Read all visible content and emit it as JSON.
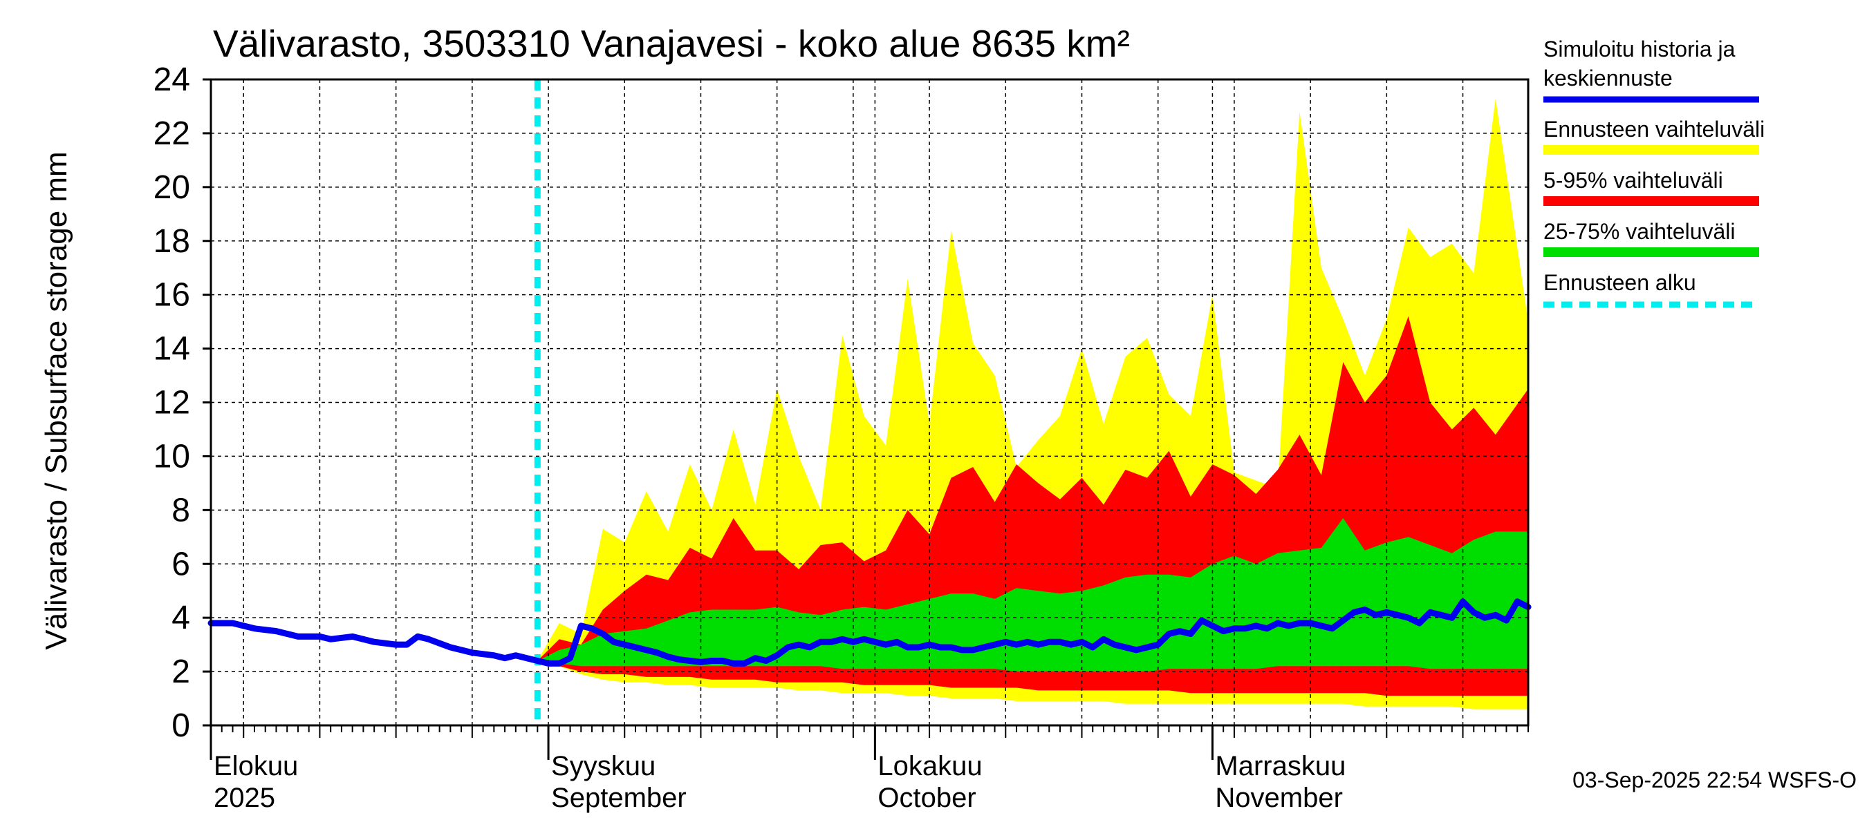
{
  "chart_data": {
    "type": "area",
    "title": "Välivarasto, 3503310 Vanajavesi - koko alue 8635 km²",
    "ylabel": "Välivarasto / Subsurface storage  mm",
    "ylim": [
      0,
      24
    ],
    "yticks": [
      "0",
      "2",
      "4",
      "6",
      "8",
      "10",
      "12",
      "14",
      "16",
      "18",
      "20",
      "22",
      "24"
    ],
    "x_range": [
      "2025-08-01",
      "2025-11-30"
    ],
    "grid": true,
    "forecast_start": "2025-08-31",
    "months": [
      {
        "fi": "Elokuu",
        "en": "2025",
        "date": "2025-08-01"
      },
      {
        "fi": "Syyskuu",
        "en": "September",
        "date": "2025-09-01"
      },
      {
        "fi": "Lokakuu",
        "en": "October",
        "date": "2025-10-01"
      },
      {
        "fi": "Marraskuu",
        "en": "November",
        "date": "2025-11-01"
      }
    ],
    "legend": {
      "placement": "right",
      "items": [
        {
          "label": "Simuloitu historia ja keskiennuste",
          "color": "#0000ee",
          "style": "line"
        },
        {
          "label": "Ennusteen vaihteluväli",
          "color": "#ffff00",
          "style": "band"
        },
        {
          "label": "5-95% vaihteluväli",
          "color": "#ff0000",
          "style": "band"
        },
        {
          "label": "25-75% vaihteluväli",
          "color": "#00dd00",
          "style": "band"
        },
        {
          "label": "Ennusteen alku",
          "color": "#00eeee",
          "style": "dashed"
        }
      ]
    },
    "series": [
      {
        "name": "Simuloitu historia ja keskiennuste",
        "points": [
          [
            "2025-08-01",
            3.8
          ],
          [
            "2025-08-03",
            3.8
          ],
          [
            "2025-08-05",
            3.6
          ],
          [
            "2025-08-07",
            3.5
          ],
          [
            "2025-08-09",
            3.3
          ],
          [
            "2025-08-11",
            3.3
          ],
          [
            "2025-08-12",
            3.2
          ],
          [
            "2025-08-14",
            3.3
          ],
          [
            "2025-08-16",
            3.1
          ],
          [
            "2025-08-18",
            3.0
          ],
          [
            "2025-08-19",
            3.0
          ],
          [
            "2025-08-20",
            3.3
          ],
          [
            "2025-08-21",
            3.2
          ],
          [
            "2025-08-23",
            2.9
          ],
          [
            "2025-08-25",
            2.7
          ],
          [
            "2025-08-27",
            2.6
          ],
          [
            "2025-08-28",
            2.5
          ],
          [
            "2025-08-29",
            2.6
          ],
          [
            "2025-08-31",
            2.4
          ],
          [
            "2025-09-01",
            2.3
          ],
          [
            "2025-09-02",
            2.3
          ],
          [
            "2025-09-03",
            2.5
          ],
          [
            "2025-09-04",
            3.7
          ],
          [
            "2025-09-05",
            3.6
          ],
          [
            "2025-09-06",
            3.4
          ],
          [
            "2025-09-07",
            3.1
          ],
          [
            "2025-09-08",
            3.0
          ],
          [
            "2025-09-09",
            2.9
          ],
          [
            "2025-09-10",
            2.8
          ],
          [
            "2025-09-11",
            2.7
          ],
          [
            "2025-09-12",
            2.55
          ],
          [
            "2025-09-13",
            2.45
          ],
          [
            "2025-09-14",
            2.4
          ],
          [
            "2025-09-15",
            2.35
          ],
          [
            "2025-09-16",
            2.4
          ],
          [
            "2025-09-17",
            2.4
          ],
          [
            "2025-09-18",
            2.3
          ],
          [
            "2025-09-19",
            2.3
          ],
          [
            "2025-09-20",
            2.5
          ],
          [
            "2025-09-21",
            2.4
          ],
          [
            "2025-09-22",
            2.6
          ],
          [
            "2025-09-23",
            2.9
          ],
          [
            "2025-09-24",
            3.0
          ],
          [
            "2025-09-25",
            2.9
          ],
          [
            "2025-09-26",
            3.1
          ],
          [
            "2025-09-27",
            3.1
          ],
          [
            "2025-09-28",
            3.2
          ],
          [
            "2025-09-29",
            3.1
          ],
          [
            "2025-09-30",
            3.2
          ],
          [
            "2025-10-01",
            3.1
          ],
          [
            "2025-10-02",
            3.0
          ],
          [
            "2025-10-03",
            3.1
          ],
          [
            "2025-10-04",
            2.9
          ],
          [
            "2025-10-05",
            2.9
          ],
          [
            "2025-10-06",
            3.0
          ],
          [
            "2025-10-07",
            2.9
          ],
          [
            "2025-10-08",
            2.9
          ],
          [
            "2025-10-09",
            2.8
          ],
          [
            "2025-10-10",
            2.8
          ],
          [
            "2025-10-11",
            2.9
          ],
          [
            "2025-10-12",
            3.0
          ],
          [
            "2025-10-13",
            3.1
          ],
          [
            "2025-10-14",
            3.0
          ],
          [
            "2025-10-15",
            3.1
          ],
          [
            "2025-10-16",
            3.0
          ],
          [
            "2025-10-17",
            3.1
          ],
          [
            "2025-10-18",
            3.1
          ],
          [
            "2025-10-19",
            3.0
          ],
          [
            "2025-10-20",
            3.1
          ],
          [
            "2025-10-21",
            2.9
          ],
          [
            "2025-10-22",
            3.2
          ],
          [
            "2025-10-23",
            3.0
          ],
          [
            "2025-10-24",
            2.9
          ],
          [
            "2025-10-25",
            2.8
          ],
          [
            "2025-10-26",
            2.9
          ],
          [
            "2025-10-27",
            3.0
          ],
          [
            "2025-10-28",
            3.4
          ],
          [
            "2025-10-29",
            3.5
          ],
          [
            "2025-10-30",
            3.4
          ],
          [
            "2025-10-31",
            3.9
          ],
          [
            "2025-11-01",
            3.7
          ],
          [
            "2025-11-02",
            3.5
          ],
          [
            "2025-11-03",
            3.6
          ],
          [
            "2025-11-04",
            3.6
          ],
          [
            "2025-11-05",
            3.7
          ],
          [
            "2025-11-06",
            3.6
          ],
          [
            "2025-11-07",
            3.8
          ],
          [
            "2025-11-08",
            3.7
          ],
          [
            "2025-11-09",
            3.8
          ],
          [
            "2025-11-10",
            3.8
          ],
          [
            "2025-11-11",
            3.7
          ],
          [
            "2025-11-12",
            3.6
          ],
          [
            "2025-11-13",
            3.9
          ],
          [
            "2025-11-14",
            4.2
          ],
          [
            "2025-11-15",
            4.3
          ],
          [
            "2025-11-16",
            4.1
          ],
          [
            "2025-11-17",
            4.2
          ],
          [
            "2025-11-18",
            4.1
          ],
          [
            "2025-11-19",
            4.0
          ],
          [
            "2025-11-20",
            3.8
          ],
          [
            "2025-11-21",
            4.2
          ],
          [
            "2025-11-22",
            4.1
          ],
          [
            "2025-11-23",
            4.0
          ],
          [
            "2025-11-24",
            4.6
          ],
          [
            "2025-11-25",
            4.2
          ],
          [
            "2025-11-26",
            4.0
          ],
          [
            "2025-11-27",
            4.1
          ],
          [
            "2025-11-28",
            3.9
          ],
          [
            "2025-11-29",
            4.6
          ],
          [
            "2025-11-30",
            4.4
          ]
        ]
      }
    ],
    "bands": [
      {
        "name": "Ennusteen vaihteluväli",
        "dates": [
          "2025-08-31",
          "2025-09-02",
          "2025-09-04",
          "2025-09-06",
          "2025-09-08",
          "2025-09-10",
          "2025-09-12",
          "2025-09-14",
          "2025-09-16",
          "2025-09-18",
          "2025-09-20",
          "2025-09-22",
          "2025-09-24",
          "2025-09-26",
          "2025-09-28",
          "2025-09-30",
          "2025-10-02",
          "2025-10-04",
          "2025-10-06",
          "2025-10-08",
          "2025-10-10",
          "2025-10-12",
          "2025-10-14",
          "2025-10-16",
          "2025-10-18",
          "2025-10-20",
          "2025-10-22",
          "2025-10-24",
          "2025-10-26",
          "2025-10-28",
          "2025-10-30",
          "2025-11-01",
          "2025-11-03",
          "2025-11-05",
          "2025-11-07",
          "2025-11-09",
          "2025-11-11",
          "2025-11-13",
          "2025-11-15",
          "2025-11-17",
          "2025-11-19",
          "2025-11-21",
          "2025-11-23",
          "2025-11-25",
          "2025-11-27",
          "2025-11-30"
        ],
        "low": [
          2.4,
          2.2,
          1.9,
          1.7,
          1.6,
          1.6,
          1.5,
          1.5,
          1.4,
          1.4,
          1.4,
          1.4,
          1.3,
          1.3,
          1.2,
          1.2,
          1.2,
          1.1,
          1.1,
          1.0,
          1.0,
          1.0,
          0.9,
          0.9,
          0.9,
          0.9,
          0.9,
          0.8,
          0.8,
          0.8,
          0.8,
          0.8,
          0.8,
          0.8,
          0.8,
          0.8,
          0.8,
          0.8,
          0.7,
          0.7,
          0.7,
          0.7,
          0.7,
          0.6,
          0.6,
          0.6
        ],
        "high": [
          2.4,
          3.8,
          3.4,
          7.3,
          6.8,
          8.7,
          7.2,
          9.7,
          8.0,
          11.0,
          8.2,
          12.5,
          10.0,
          8.0,
          14.5,
          11.5,
          10.4,
          16.6,
          11.2,
          18.4,
          14.2,
          13.0,
          9.6,
          10.6,
          11.5,
          14.0,
          11.2,
          13.7,
          14.4,
          12.3,
          11.5,
          16.0,
          9.4,
          9.1,
          8.8,
          22.8,
          17.0,
          15.1,
          13.0,
          15.1,
          18.5,
          17.4,
          17.9,
          16.8,
          23.3,
          15.0
        ]
      },
      {
        "name": "5-95% vaihteluväli",
        "dates": [
          "2025-08-31",
          "2025-09-02",
          "2025-09-04",
          "2025-09-06",
          "2025-09-08",
          "2025-09-10",
          "2025-09-12",
          "2025-09-14",
          "2025-09-16",
          "2025-09-18",
          "2025-09-20",
          "2025-09-22",
          "2025-09-24",
          "2025-09-26",
          "2025-09-28",
          "2025-09-30",
          "2025-10-02",
          "2025-10-04",
          "2025-10-06",
          "2025-10-08",
          "2025-10-10",
          "2025-10-12",
          "2025-10-14",
          "2025-10-16",
          "2025-10-18",
          "2025-10-20",
          "2025-10-22",
          "2025-10-24",
          "2025-10-26",
          "2025-10-28",
          "2025-10-30",
          "2025-11-01",
          "2025-11-03",
          "2025-11-05",
          "2025-11-07",
          "2025-11-09",
          "2025-11-11",
          "2025-11-13",
          "2025-11-15",
          "2025-11-17",
          "2025-11-19",
          "2025-11-21",
          "2025-11-23",
          "2025-11-25",
          "2025-11-27",
          "2025-11-30"
        ],
        "low": [
          2.4,
          2.2,
          2.0,
          1.9,
          1.9,
          1.8,
          1.8,
          1.8,
          1.7,
          1.7,
          1.7,
          1.6,
          1.6,
          1.6,
          1.6,
          1.5,
          1.5,
          1.5,
          1.5,
          1.4,
          1.4,
          1.4,
          1.4,
          1.3,
          1.3,
          1.3,
          1.3,
          1.3,
          1.3,
          1.3,
          1.2,
          1.2,
          1.2,
          1.2,
          1.2,
          1.2,
          1.2,
          1.2,
          1.2,
          1.1,
          1.1,
          1.1,
          1.1,
          1.1,
          1.1,
          1.1
        ],
        "high": [
          2.4,
          3.2,
          3.0,
          4.3,
          5.0,
          5.6,
          5.4,
          6.6,
          6.2,
          7.7,
          6.5,
          6.5,
          5.8,
          6.7,
          6.8,
          6.1,
          6.5,
          8.0,
          7.1,
          9.2,
          9.6,
          8.3,
          9.7,
          9.0,
          8.4,
          9.2,
          8.2,
          9.5,
          9.2,
          10.2,
          8.5,
          9.7,
          9.3,
          8.6,
          9.5,
          10.8,
          9.3,
          13.5,
          12.0,
          13.0,
          15.2,
          12.0,
          11.0,
          11.8,
          10.8,
          12.5
        ]
      },
      {
        "name": "25-75% vaihteluväli",
        "dates": [
          "2025-08-31",
          "2025-09-02",
          "2025-09-04",
          "2025-09-06",
          "2025-09-08",
          "2025-09-10",
          "2025-09-12",
          "2025-09-14",
          "2025-09-16",
          "2025-09-18",
          "2025-09-20",
          "2025-09-22",
          "2025-09-24",
          "2025-09-26",
          "2025-09-28",
          "2025-09-30",
          "2025-10-02",
          "2025-10-04",
          "2025-10-06",
          "2025-10-08",
          "2025-10-10",
          "2025-10-12",
          "2025-10-14",
          "2025-10-16",
          "2025-10-18",
          "2025-10-20",
          "2025-10-22",
          "2025-10-24",
          "2025-10-26",
          "2025-10-28",
          "2025-10-30",
          "2025-11-01",
          "2025-11-03",
          "2025-11-05",
          "2025-11-07",
          "2025-11-09",
          "2025-11-11",
          "2025-11-13",
          "2025-11-15",
          "2025-11-17",
          "2025-11-19",
          "2025-11-21",
          "2025-11-23",
          "2025-11-25",
          "2025-11-27",
          "2025-11-30"
        ],
        "low": [
          2.4,
          2.3,
          2.2,
          2.2,
          2.2,
          2.2,
          2.2,
          2.2,
          2.2,
          2.2,
          2.2,
          2.2,
          2.2,
          2.2,
          2.1,
          2.1,
          2.1,
          2.1,
          2.1,
          2.1,
          2.1,
          2.1,
          2.0,
          2.0,
          2.0,
          2.0,
          2.0,
          2.0,
          2.0,
          2.1,
          2.1,
          2.1,
          2.1,
          2.1,
          2.2,
          2.2,
          2.2,
          2.2,
          2.2,
          2.2,
          2.2,
          2.1,
          2.1,
          2.1,
          2.1,
          2.1
        ],
        "high": [
          2.4,
          2.8,
          3.0,
          3.4,
          3.5,
          3.6,
          3.9,
          4.2,
          4.3,
          4.3,
          4.3,
          4.4,
          4.2,
          4.1,
          4.3,
          4.4,
          4.3,
          4.5,
          4.7,
          4.9,
          4.9,
          4.7,
          5.1,
          5.0,
          4.9,
          5.0,
          5.2,
          5.5,
          5.6,
          5.6,
          5.5,
          6.0,
          6.3,
          6.0,
          6.4,
          6.5,
          6.6,
          7.7,
          6.5,
          6.8,
          7.0,
          6.7,
          6.4,
          6.9,
          7.2,
          7.2
        ]
      }
    ]
  },
  "footer": {
    "timestamp": "03-Sep-2025 22:54 WSFS-O"
  }
}
